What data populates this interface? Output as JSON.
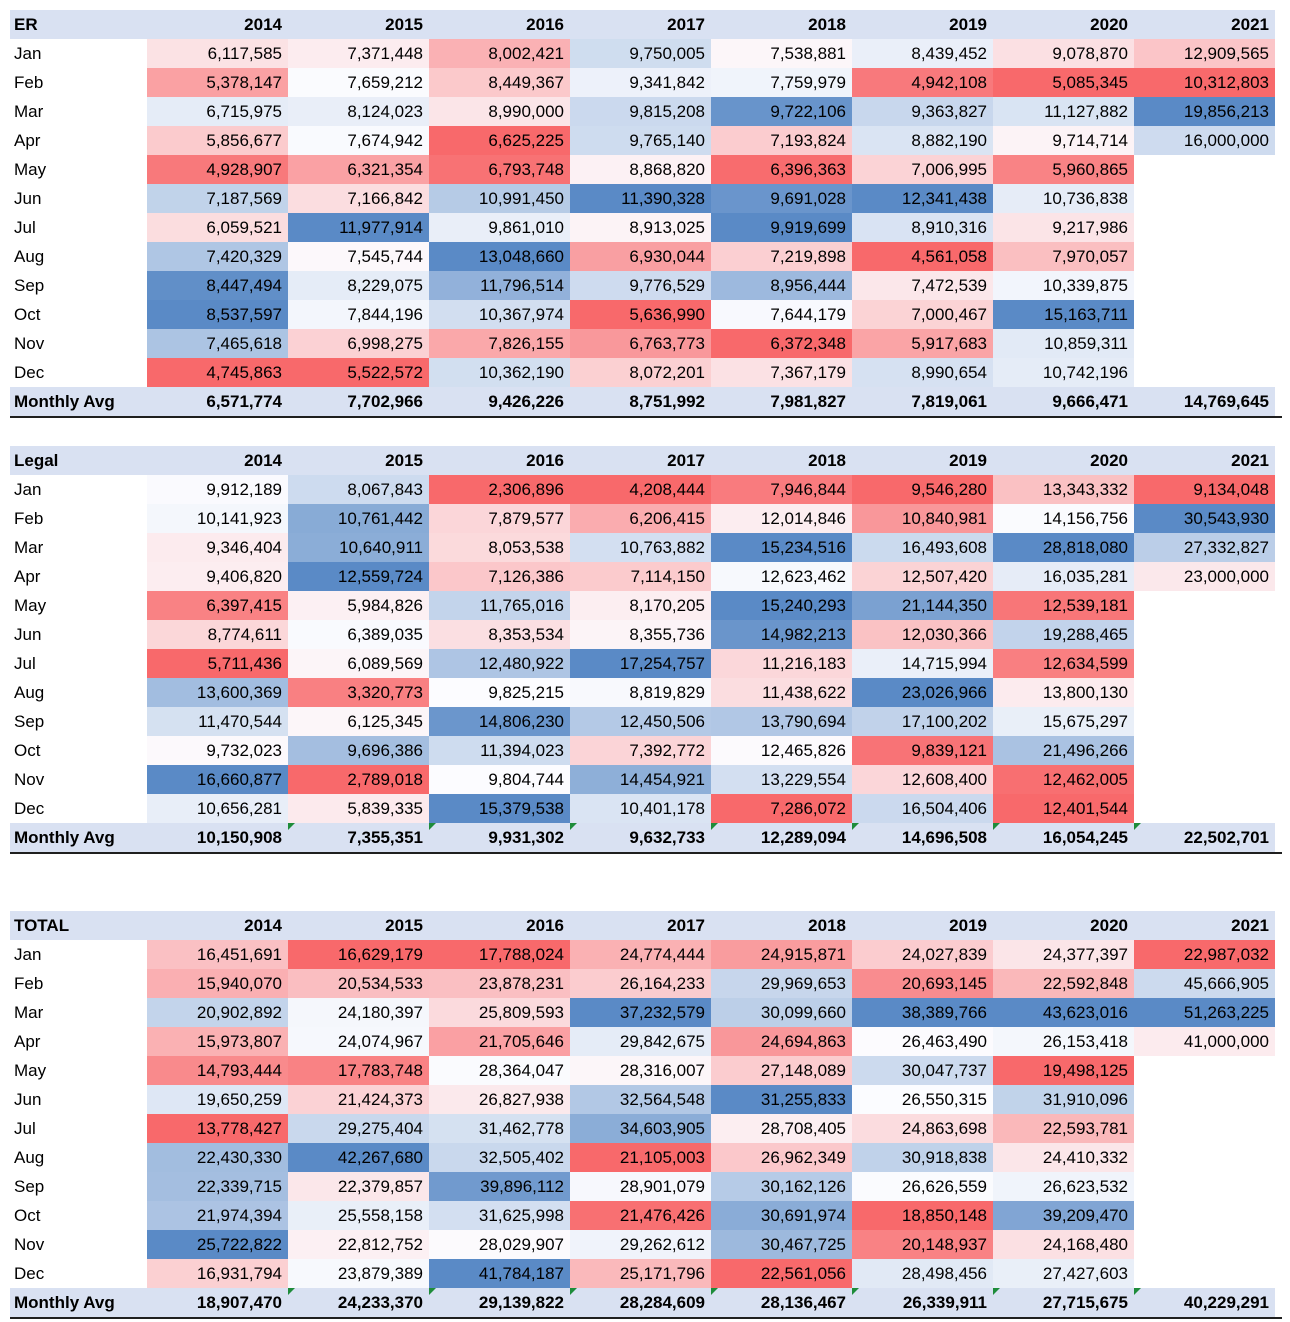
{
  "years": [
    "2014",
    "2015",
    "2016",
    "2017",
    "2018",
    "2019",
    "2020",
    "2021"
  ],
  "months": [
    "Jan",
    "Feb",
    "Mar",
    "Apr",
    "May",
    "Jun",
    "Jul",
    "Aug",
    "Sep",
    "Oct",
    "Nov",
    "Dec"
  ],
  "avg_label": "Monthly Avg",
  "heat_colors": {
    "low": "#f8696b",
    "mid": "#fcfcff",
    "high": "#5a8ac6"
  },
  "tables": [
    {
      "title": "ER",
      "rows": [
        [
          "6,117,585",
          "7,371,448",
          "8,002,421",
          "9,750,005",
          "7,538,881",
          "8,439,452",
          "9,078,870",
          "12,909,565"
        ],
        [
          "5,378,147",
          "7,659,212",
          "8,449,367",
          "9,341,842",
          "7,759,979",
          "4,942,108",
          "5,085,345",
          "10,312,803"
        ],
        [
          "6,715,975",
          "8,124,023",
          "8,990,000",
          "9,815,208",
          "9,722,106",
          "9,363,827",
          "11,127,882",
          "19,856,213"
        ],
        [
          "5,856,677",
          "7,674,942",
          "6,625,225",
          "9,765,140",
          "7,193,824",
          "8,882,190",
          "9,714,714",
          "16,000,000"
        ],
        [
          "4,928,907",
          "6,321,354",
          "6,793,748",
          "8,868,820",
          "6,396,363",
          "7,006,995",
          "5,960,865",
          ""
        ],
        [
          "7,187,569",
          "7,166,842",
          "10,991,450",
          "11,390,328",
          "9,691,028",
          "12,341,438",
          "10,736,838",
          ""
        ],
        [
          "6,059,521",
          "11,977,914",
          "9,861,010",
          "8,913,025",
          "9,919,699",
          "8,910,316",
          "9,217,986",
          ""
        ],
        [
          "7,420,329",
          "7,545,744",
          "13,048,660",
          "6,930,044",
          "7,219,898",
          "4,561,058",
          "7,970,057",
          ""
        ],
        [
          "8,447,494",
          "8,229,075",
          "11,796,514",
          "9,776,529",
          "8,956,444",
          "7,472,539",
          "10,339,875",
          ""
        ],
        [
          "8,537,597",
          "7,844,196",
          "10,367,974",
          "5,636,990",
          "7,644,179",
          "7,000,467",
          "15,163,711",
          ""
        ],
        [
          "7,465,618",
          "6,998,275",
          "7,826,155",
          "6,763,773",
          "6,372,348",
          "5,917,683",
          "10,859,311",
          ""
        ],
        [
          "4,745,863",
          "5,522,572",
          "10,362,190",
          "8,072,201",
          "7,367,179",
          "8,990,654",
          "10,742,196",
          ""
        ]
      ],
      "avg": [
        "6,571,774",
        "7,702,966",
        "9,426,226",
        "8,751,992",
        "7,981,827",
        "7,819,061",
        "9,666,471",
        "14,769,645"
      ],
      "flags": false
    },
    {
      "title": "Legal",
      "rows": [
        [
          "9,912,189",
          "8,067,843",
          "2,306,896",
          "4,208,444",
          "7,946,844",
          "9,546,280",
          "13,343,332",
          "9,134,048"
        ],
        [
          "10,141,923",
          "10,761,442",
          "7,879,577",
          "6,206,415",
          "12,014,846",
          "10,840,981",
          "14,156,756",
          "30,543,930"
        ],
        [
          "9,346,404",
          "10,640,911",
          "8,053,538",
          "10,763,882",
          "15,234,516",
          "16,493,608",
          "28,818,080",
          "27,332,827"
        ],
        [
          "9,406,820",
          "12,559,724",
          "7,126,386",
          "7,114,150",
          "12,623,462",
          "12,507,420",
          "16,035,281",
          "23,000,000"
        ],
        [
          "6,397,415",
          "5,984,826",
          "11,765,016",
          "8,170,205",
          "15,240,293",
          "21,144,350",
          "12,539,181",
          ""
        ],
        [
          "8,774,611",
          "6,389,035",
          "8,353,534",
          "8,355,736",
          "14,982,213",
          "12,030,366",
          "19,288,465",
          ""
        ],
        [
          "5,711,436",
          "6,089,569",
          "12,480,922",
          "17,254,757",
          "11,216,183",
          "14,715,994",
          "12,634,599",
          ""
        ],
        [
          "13,600,369",
          "3,320,773",
          "9,825,215",
          "8,819,829",
          "11,438,622",
          "23,026,966",
          "13,800,130",
          ""
        ],
        [
          "11,470,544",
          "6,125,345",
          "14,806,230",
          "12,450,506",
          "13,790,694",
          "17,100,202",
          "15,675,297",
          ""
        ],
        [
          "9,732,023",
          "9,696,386",
          "11,394,023",
          "7,392,772",
          "12,465,826",
          "9,839,121",
          "21,496,266",
          ""
        ],
        [
          "16,660,877",
          "2,789,018",
          "9,804,744",
          "14,454,921",
          "13,229,554",
          "12,608,400",
          "12,462,005",
          ""
        ],
        [
          "10,656,281",
          "5,839,335",
          "15,379,538",
          "10,401,178",
          "7,286,072",
          "16,504,406",
          "12,401,544",
          ""
        ]
      ],
      "avg": [
        "10,150,908",
        "7,355,351",
        "9,931,302",
        "9,632,733",
        "12,289,094",
        "14,696,508",
        "16,054,245",
        "22,502,701"
      ],
      "flags": true
    },
    {
      "title": "TOTAL",
      "rows": [
        [
          "16,451,691",
          "16,629,179",
          "17,788,024",
          "24,774,444",
          "24,915,871",
          "24,027,839",
          "24,377,397",
          "22,987,032"
        ],
        [
          "15,940,070",
          "20,534,533",
          "23,878,231",
          "26,164,233",
          "29,969,653",
          "20,693,145",
          "22,592,848",
          "45,666,905"
        ],
        [
          "20,902,892",
          "24,180,397",
          "25,809,593",
          "37,232,579",
          "30,099,660",
          "38,389,766",
          "43,623,016",
          "51,263,225"
        ],
        [
          "15,973,807",
          "24,074,967",
          "21,705,646",
          "29,842,675",
          "24,694,863",
          "26,463,490",
          "26,153,418",
          "41,000,000"
        ],
        [
          "14,793,444",
          "17,783,748",
          "28,364,047",
          "28,316,007",
          "27,148,089",
          "30,047,737",
          "19,498,125",
          ""
        ],
        [
          "19,650,259",
          "21,424,373",
          "26,827,938",
          "32,564,548",
          "31,255,833",
          "26,550,315",
          "31,910,096",
          ""
        ],
        [
          "13,778,427",
          "29,275,404",
          "31,462,778",
          "34,603,905",
          "28,708,405",
          "24,863,698",
          "22,593,781",
          ""
        ],
        [
          "22,430,330",
          "42,267,680",
          "32,505,402",
          "21,105,003",
          "26,962,349",
          "30,918,838",
          "24,410,332",
          ""
        ],
        [
          "22,339,715",
          "22,379,857",
          "39,896,112",
          "28,901,079",
          "30,162,126",
          "26,626,559",
          "26,623,532",
          ""
        ],
        [
          "21,974,394",
          "25,558,158",
          "31,625,998",
          "21,476,426",
          "30,691,974",
          "18,850,148",
          "39,209,470",
          ""
        ],
        [
          "25,722,822",
          "22,812,752",
          "28,029,907",
          "29,262,612",
          "30,467,725",
          "20,148,937",
          "24,168,480",
          ""
        ],
        [
          "16,931,794",
          "23,879,389",
          "41,784,187",
          "25,171,796",
          "22,561,056",
          "28,498,456",
          "27,427,603",
          ""
        ]
      ],
      "avg": [
        "18,907,470",
        "24,233,370",
        "29,139,822",
        "28,284,609",
        "28,136,467",
        "26,339,911",
        "27,715,675",
        "40,229,291"
      ],
      "flags": true
    }
  ]
}
